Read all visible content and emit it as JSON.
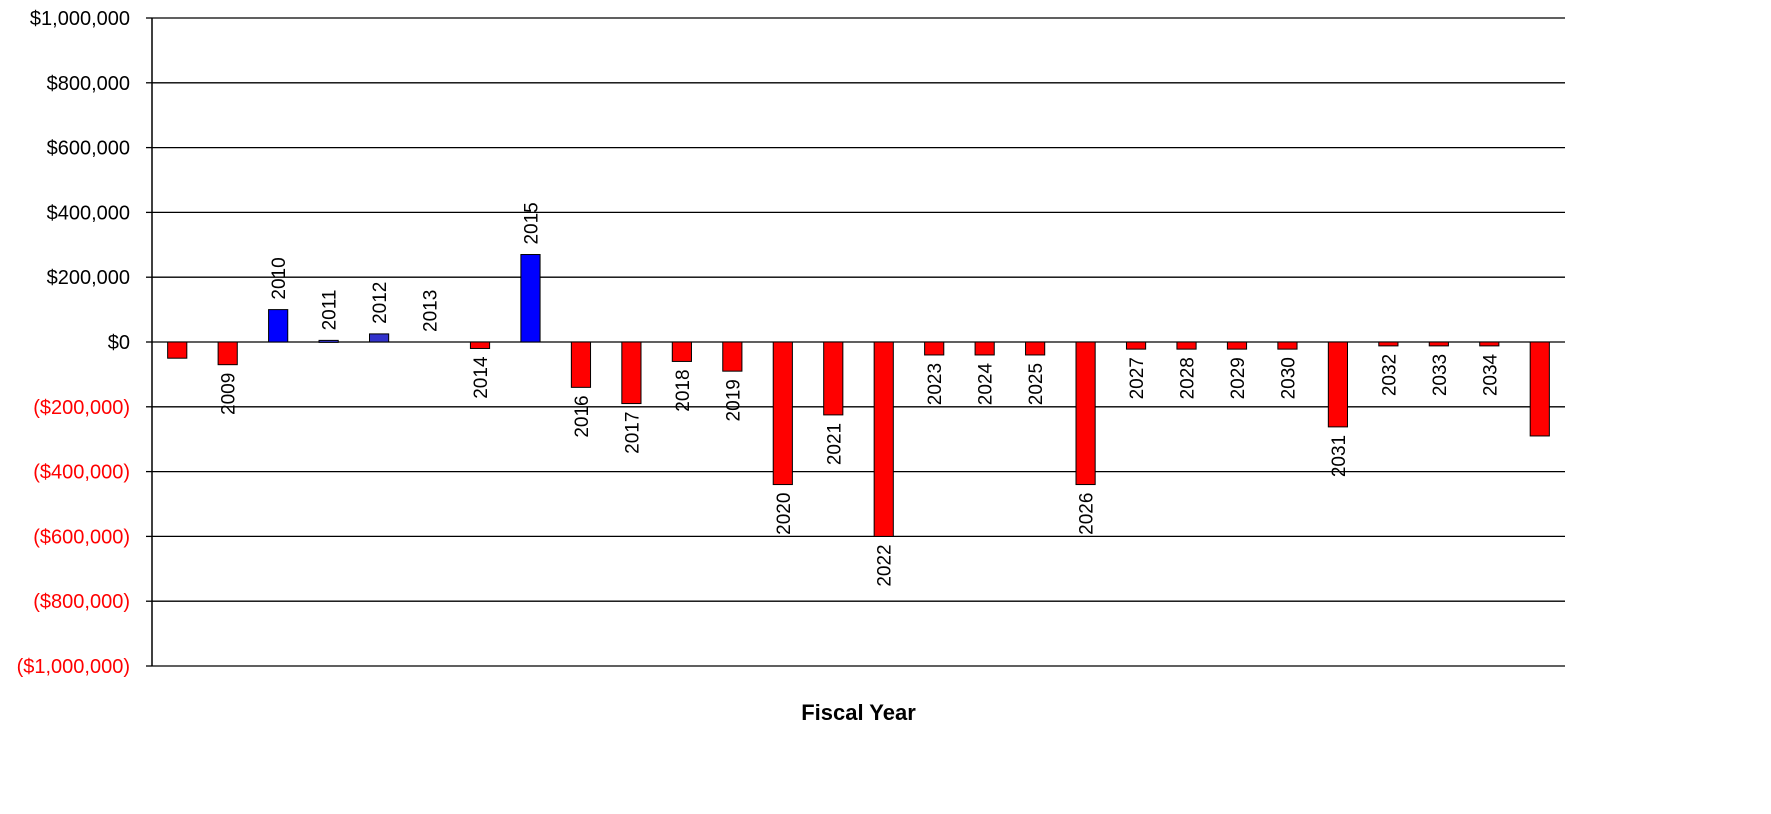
{
  "chart_data": {
    "type": "bar",
    "title": "",
    "xlabel": "Fiscal Year",
    "ylabel": "",
    "ylim": [
      -1000000,
      1000000
    ],
    "grid": true,
    "legend": "none",
    "y_ticks": [
      1000000,
      800000,
      600000,
      400000,
      200000,
      0,
      -200000,
      -400000,
      -600000,
      -800000,
      -1000000
    ],
    "y_tick_labels": [
      "$1,000,000",
      "$800,000",
      "$600,000",
      "$400,000",
      "$200,000",
      "$0",
      "($200,000)",
      "($400,000)",
      "($600,000)",
      "($800,000)",
      "($1,000,000)"
    ],
    "categories": [
      "",
      "2009",
      "2010",
      "2011",
      "2012",
      "2013",
      "2014",
      "2015",
      "2016",
      "2017",
      "2018",
      "2019",
      "2020",
      "2021",
      "2022",
      "2023",
      "2024",
      "2025",
      "2026",
      "2027",
      "2028",
      "2029",
      "2030",
      "2031",
      "2032",
      "2033",
      "2034",
      ""
    ],
    "values": [
      -50000,
      -70000,
      100000,
      5000,
      25000,
      0,
      -20000,
      270000,
      -140000,
      -190000,
      -60000,
      -90000,
      -440000,
      -225000,
      -600000,
      -40000,
      -40000,
      -40000,
      -440000,
      -22000,
      -22000,
      -22000,
      -22000,
      -262000,
      -12000,
      -12000,
      -12000,
      -290000
    ],
    "colors": {
      "positive": "#0000FF",
      "positive_alt": "#3333CC",
      "negative": "#FF0000",
      "positive_tick": "#000000",
      "negative_tick": "#FF0000",
      "gridline": "#000000"
    }
  }
}
